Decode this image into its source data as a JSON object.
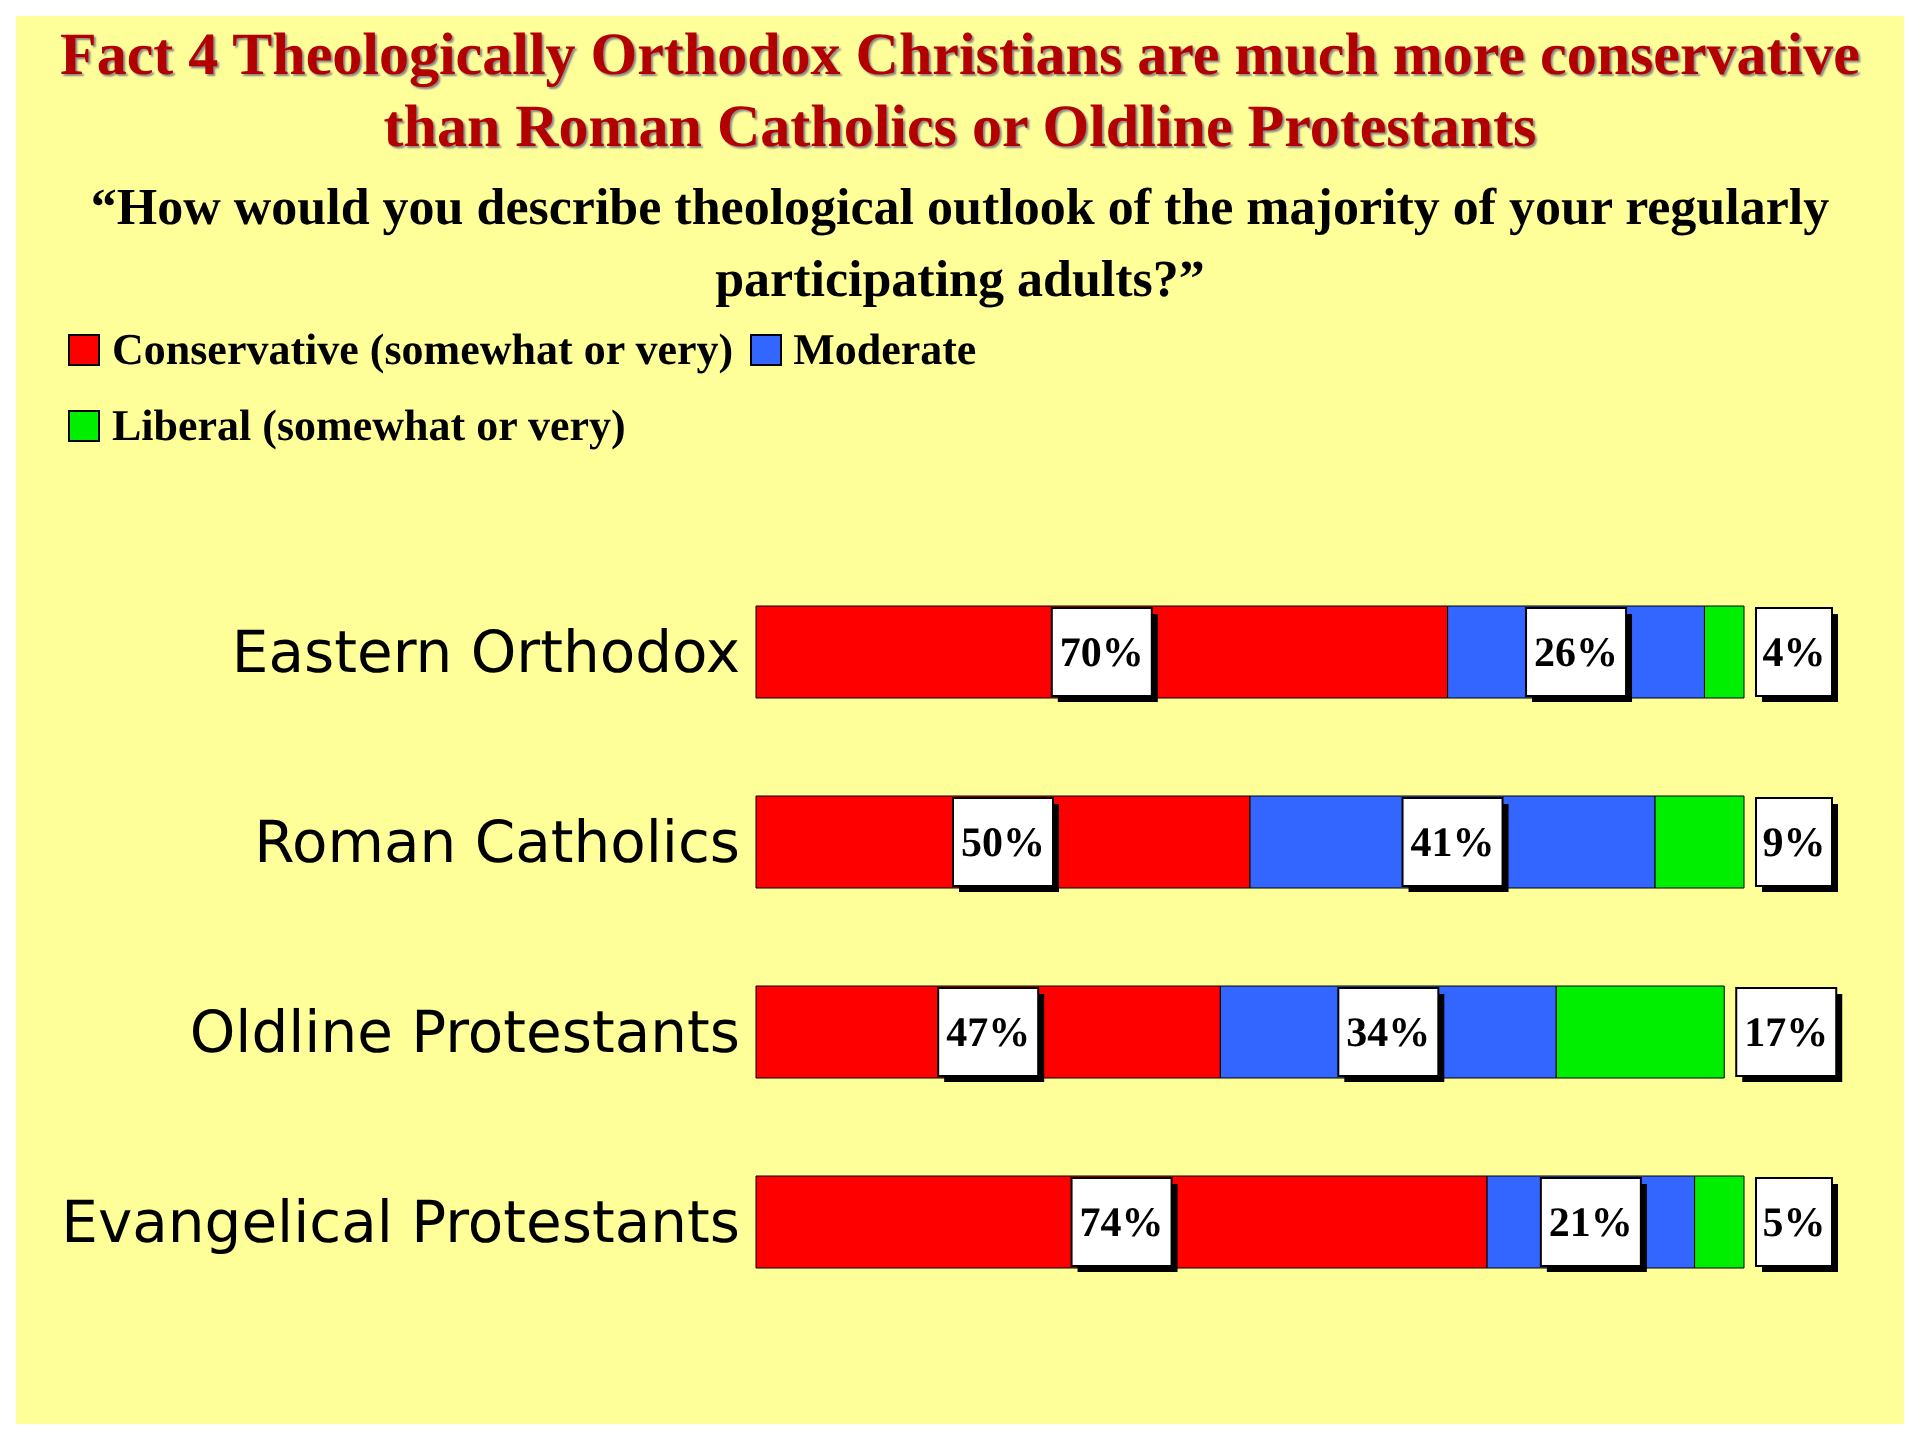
{
  "chart_data": {
    "type": "bar",
    "orientation": "horizontal",
    "stacked": true,
    "title": "Fact 4 Theologically Orthodox Christians are much more conservative than Roman Catholics or Oldline Protestants",
    "subtitle": "“How would you describe theological outlook of the majority of your regularly participating adults?”",
    "categories": [
      "Eastern Orthodox",
      "Roman Catholics",
      "Oldline Protestants",
      "Evangelical Protestants"
    ],
    "series": [
      {
        "name": "Conservative (somewhat or very)",
        "color": "#ff0000",
        "values": [
          70,
          50,
          47,
          74
        ],
        "value_labels": [
          "70%",
          "50%",
          "47%",
          "74%"
        ]
      },
      {
        "name": "Moderate",
        "color": "#3366ff",
        "values": [
          26,
          41,
          34,
          21
        ],
        "value_labels": [
          "26%",
          "41%",
          "34%",
          "21%"
        ]
      },
      {
        "name": "Liberal (somewhat or very)",
        "color": "#00ee00",
        "values": [
          4,
          9,
          17,
          5
        ],
        "value_labels": [
          "4%",
          "9%",
          "17%",
          "5%"
        ]
      }
    ],
    "legend": "top left"
  }
}
